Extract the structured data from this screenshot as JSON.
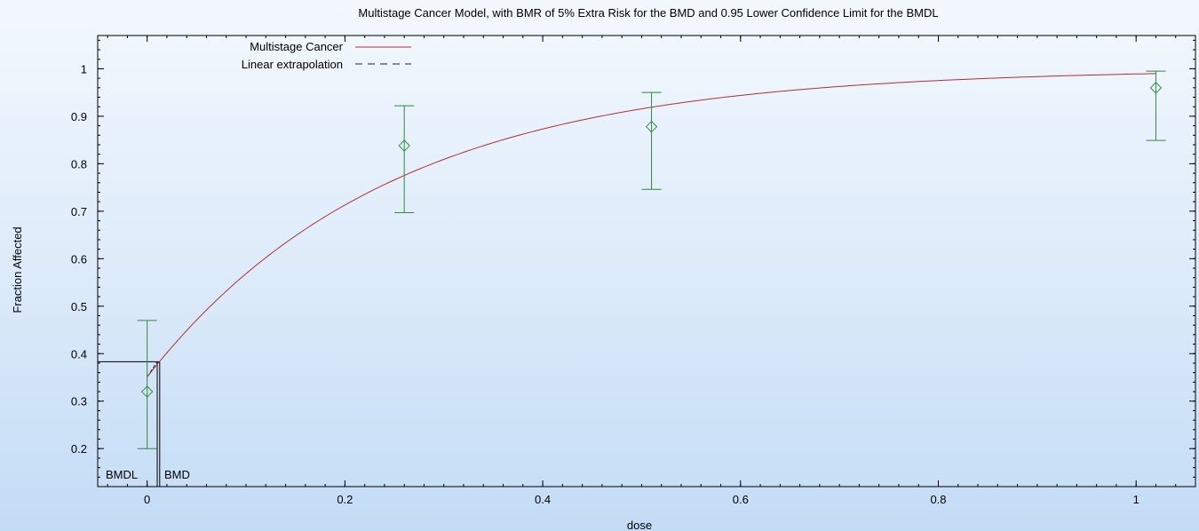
{
  "chart_data": {
    "type": "scatter",
    "title": "Multistage Cancer Model, with BMR of 5% Extra Risk for the BMD and 0.95 Lower Confidence Limit for the BMDL",
    "xlabel": "dose",
    "ylabel": "Fraction Affected",
    "xlim": [
      -0.05,
      1.06
    ],
    "ylim": [
      0.12,
      1.07
    ],
    "x_ticks": [
      0,
      0.2,
      0.4,
      0.6,
      0.8,
      1
    ],
    "y_ticks": [
      0.2,
      0.3,
      0.4,
      0.5,
      0.6,
      0.7,
      0.8,
      0.9,
      1
    ],
    "legend_position": "top-left",
    "grid": false,
    "colors": {
      "model": "#b03030",
      "linear": "#1c1c50",
      "data": "#2e8b3a",
      "axis": "#000000"
    },
    "series": [
      {
        "name": "Multistage Cancer",
        "kind": "model-curve",
        "background": 0.351,
        "slope": 4.08,
        "x_range": [
          0,
          1.02
        ]
      },
      {
        "name": "Linear extrapolation",
        "kind": "dashed-line",
        "x": [
          0,
          0.0102
        ],
        "y": [
          0.351,
          0.383
        ]
      }
    ],
    "observations": [
      {
        "x": 0,
        "y": 0.32,
        "lower": 0.2,
        "upper": 0.47
      },
      {
        "x": 0.26,
        "y": 0.838,
        "lower": 0.697,
        "upper": 0.922
      },
      {
        "x": 0.51,
        "y": 0.878,
        "lower": 0.746,
        "upper": 0.95
      },
      {
        "x": 1.02,
        "y": 0.96,
        "lower": 0.849,
        "upper": 0.995
      }
    ],
    "bmr_level": 0.383,
    "bmd": 0.0127,
    "bmdl": 0.0102,
    "annotations": [
      "BMDL",
      "BMD"
    ]
  }
}
